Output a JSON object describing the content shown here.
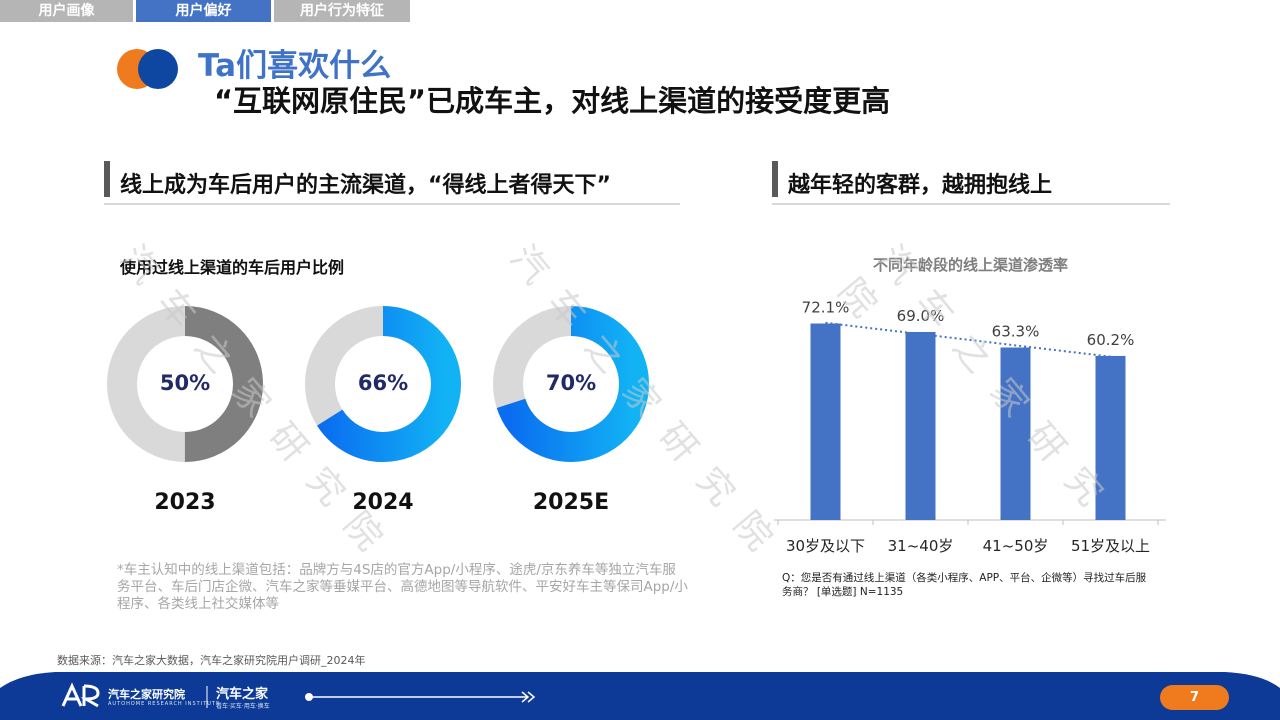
{
  "tabs": [
    "用户画像",
    "用户偏好",
    "用户行为特征"
  ],
  "header": {
    "kicker": "Ta们喜欢什么",
    "title": "“互联网原住民”已成车主，对线上渠道的接受度更高"
  },
  "left": {
    "section_title": "线上成为车后用户的主流渠道，“得线上者得天下”",
    "subtitle": "使用过线上渠道的车后用户比例",
    "donuts": [
      {
        "label": "50%",
        "value": 0.5,
        "year": "2023",
        "color": "#7f7f7f"
      },
      {
        "label": "66%",
        "value": 0.66,
        "year": "2024",
        "color": "#0a6cf0"
      },
      {
        "label": "70%",
        "value": 0.7,
        "year": "2025E",
        "color": "#0a6cf0"
      }
    ],
    "note": "*车主认知中的线上渠道包括：品牌方与4S店的官方App/小程序、途虎/京东养车等独立汽车服务平台、车后门店企微、汽车之家等垂媒平台、高德地图等导航软件、平安好车主等保司App/小程序、各类线上社交媒体等"
  },
  "right": {
    "section_title": "越年轻的客群，越拥抱线上",
    "question": "Q：您是否有通过线上渠道（各类小程序、APP、平台、企微等）寻找过车后服务商？ [单选题] N=1135"
  },
  "chart_data": {
    "type": "bar",
    "title": "不同年龄段的线上渠道渗透率",
    "categories": [
      "30岁及以下",
      "31~40岁",
      "41~50岁",
      "51岁及以上"
    ],
    "values": [
      72.1,
      69.0,
      63.3,
      60.2
    ],
    "value_labels": [
      "72.1%",
      "69.0%",
      "63.3%",
      "60.2%"
    ],
    "bar_color": "#4472c4",
    "trendline": "dotted linear",
    "ylim": [
      0,
      80
    ],
    "grid": false
  },
  "source": "数据来源：汽车之家大数据，汽车之家研究院用户调研_2024年",
  "watermark": "汽车之家研究院",
  "footer": {
    "brand": "汽车之家研究院",
    "brand_en": "AUTOHOME RESEARCH INSTITUTE",
    "brand2": "汽车之家",
    "tagline": "看车·买车·用车·换车",
    "page": "7"
  }
}
